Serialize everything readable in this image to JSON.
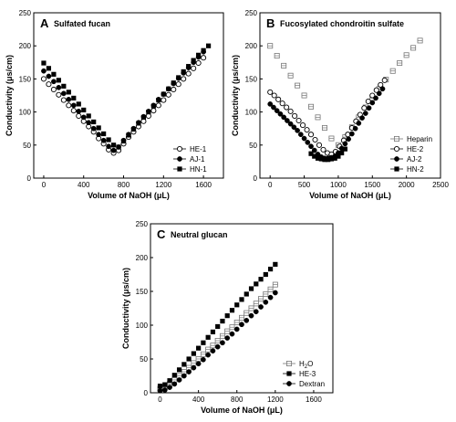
{
  "chart_data": [
    {
      "type": "scatter",
      "panel_label": "A",
      "title": "Sulfated fucan",
      "xlabel": "Volume of NaOH (μL)",
      "ylabel": "Conductivity (μs/cm)",
      "xlim": [
        -100,
        1800
      ],
      "ylim": [
        0,
        250
      ],
      "xticks": [
        0,
        400,
        800,
        1200,
        1600
      ],
      "yticks": [
        0,
        50,
        100,
        150,
        200,
        250
      ],
      "legend_position": "bottom-right",
      "series": [
        {
          "name": "HE-1",
          "marker": "open-circle",
          "color": "#000000",
          "x": [
            0,
            50,
            100,
            150,
            200,
            250,
            300,
            350,
            400,
            450,
            500,
            550,
            600,
            650,
            700,
            750,
            800,
            850,
            900,
            950,
            1000,
            1050,
            1100,
            1150,
            1200,
            1250,
            1300,
            1350,
            1400,
            1450,
            1500,
            1550,
            1600
          ],
          "y": [
            150,
            142,
            134,
            126,
            118,
            110,
            102,
            94,
            86,
            78,
            70,
            60,
            52,
            43,
            38,
            42,
            52,
            62,
            70,
            78,
            86,
            94,
            102,
            110,
            118,
            126,
            134,
            142,
            150,
            158,
            166,
            174,
            182
          ]
        },
        {
          "name": "AJ-1",
          "marker": "filled-circle",
          "color": "#000000",
          "x": [
            0,
            50,
            100,
            150,
            200,
            250,
            300,
            350,
            400,
            450,
            500,
            550,
            600,
            650,
            700,
            750,
            800,
            850,
            900,
            950,
            1000,
            1050,
            1100,
            1150,
            1200,
            1250,
            1300,
            1350,
            1400,
            1450,
            1500,
            1550,
            1600
          ],
          "y": [
            162,
            154,
            146,
            137,
            128,
            119,
            110,
            101,
            92,
            84,
            75,
            66,
            57,
            48,
            42,
            47,
            57,
            66,
            75,
            84,
            93,
            101,
            110,
            119,
            127,
            135,
            143,
            151,
            159,
            167,
            175,
            183,
            191
          ]
        },
        {
          "name": "HN-1",
          "marker": "filled-square",
          "color": "#000000",
          "x": [
            0,
            50,
            100,
            150,
            200,
            250,
            300,
            350,
            400,
            450,
            500,
            550,
            600,
            650,
            700,
            750,
            800,
            850,
            900,
            950,
            1000,
            1050,
            1100,
            1150,
            1200,
            1250,
            1300,
            1350,
            1400,
            1450,
            1500,
            1550,
            1600,
            1650
          ],
          "y": [
            174,
            166,
            157,
            148,
            139,
            130,
            121,
            112,
            103,
            94,
            85,
            76,
            67,
            58,
            50,
            47,
            56,
            65,
            74,
            83,
            92,
            100,
            109,
            118,
            127,
            135,
            144,
            152,
            161,
            169,
            178,
            186,
            193,
            200
          ]
        }
      ]
    },
    {
      "type": "scatter",
      "panel_label": "B",
      "title": "Fucosylated chondroitin sulfate",
      "xlabel": "Volume of NaOH (μL)",
      "ylabel": "Conductivity (μs/cm)",
      "xlim": [
        -150,
        2500
      ],
      "ylim": [
        0,
        250
      ],
      "xticks": [
        0,
        500,
        1000,
        1500,
        2000,
        2500
      ],
      "yticks": [
        0,
        50,
        100,
        150,
        200,
        250
      ],
      "legend_position": "bottom-right",
      "series": [
        {
          "name": "Heparin",
          "marker": "open-square-cross",
          "color": "#777777",
          "x": [
            0,
            100,
            200,
            300,
            400,
            500,
            600,
            700,
            800,
            900,
            1000,
            1100,
            1200,
            1300,
            1400,
            1500,
            1600,
            1700,
            1800,
            1900,
            2000,
            2100,
            2200
          ],
          "y": [
            200,
            185,
            170,
            155,
            140,
            125,
            108,
            92,
            76,
            60,
            50,
            62,
            77,
            92,
            107,
            121,
            135,
            149,
            162,
            174,
            186,
            197,
            208
          ]
        },
        {
          "name": "HE-2",
          "marker": "open-circle",
          "color": "#000000",
          "x": [
            0,
            60,
            120,
            180,
            240,
            300,
            360,
            420,
            480,
            540,
            600,
            660,
            720,
            780,
            840,
            900,
            960,
            1020,
            1080,
            1140,
            1200,
            1260,
            1320,
            1380,
            1440,
            1500,
            1560,
            1620,
            1680
          ],
          "y": [
            130,
            125,
            119,
            113,
            107,
            101,
            94,
            87,
            80,
            73,
            66,
            58,
            50,
            43,
            38,
            36,
            40,
            48,
            57,
            66,
            76,
            86,
            96,
            106,
            116,
            125,
            133,
            141,
            148
          ]
        },
        {
          "name": "AJ-2",
          "marker": "filled-circle",
          "color": "#000000",
          "x": [
            0,
            50,
            100,
            150,
            200,
            250,
            300,
            350,
            400,
            450,
            500,
            550,
            600,
            650,
            700,
            750,
            800,
            850,
            900,
            950,
            1000,
            1050,
            1100,
            1150,
            1200,
            1250,
            1300,
            1350,
            1400,
            1450,
            1500,
            1550,
            1600,
            1650
          ],
          "y": [
            112,
            107,
            102,
            97,
            92,
            87,
            82,
            77,
            72,
            66,
            60,
            54,
            48,
            42,
            36,
            32,
            30,
            30,
            31,
            33,
            38,
            45,
            52,
            59,
            67,
            75,
            83,
            91,
            98,
            106,
            114,
            121,
            128,
            135
          ]
        },
        {
          "name": "HN-2",
          "marker": "filled-square",
          "color": "#000000",
          "x": [
            600,
            650,
            700,
            750,
            800,
            850,
            900,
            950,
            1000,
            1050,
            1100
          ],
          "y": [
            37,
            33,
            30,
            29,
            28,
            28,
            29,
            30,
            33,
            38,
            44
          ]
        }
      ]
    },
    {
      "type": "scatter",
      "panel_label": "C",
      "title": "Neutral glucan",
      "xlabel": "Volume of NaOH (μL)",
      "ylabel": "Conductivity (μs/cm)",
      "xlim": [
        -100,
        1800
      ],
      "ylim": [
        0,
        250
      ],
      "xticks": [
        0,
        400,
        800,
        1200,
        1600
      ],
      "yticks": [
        0,
        50,
        100,
        150,
        200,
        250
      ],
      "legend_position": "bottom-right",
      "legend_labels": [
        {
          "text": "H",
          "sub": "2",
          "tail": "O"
        },
        {
          "text": "HE-3",
          "sub": "",
          "tail": ""
        },
        {
          "text": "Dextran",
          "sub": "",
          "tail": ""
        }
      ],
      "series": [
        {
          "name": "H2O",
          "marker": "open-square-cross",
          "color": "#777777",
          "x": [
            0,
            50,
            100,
            150,
            200,
            250,
            300,
            350,
            400,
            450,
            500,
            550,
            600,
            650,
            700,
            750,
            800,
            850,
            900,
            950,
            1000,
            1050,
            1100,
            1150,
            1200
          ],
          "y": [
            6,
            8,
            13,
            19,
            25,
            31,
            37,
            44,
            50,
            57,
            64,
            70,
            77,
            84,
            91,
            97,
            104,
            111,
            118,
            125,
            132,
            139,
            146,
            153,
            160
          ]
        },
        {
          "name": "HE-3",
          "marker": "filled-square",
          "color": "#000000",
          "x": [
            0,
            50,
            100,
            150,
            200,
            250,
            300,
            350,
            400,
            450,
            500,
            550,
            600,
            650,
            700,
            750,
            800,
            850,
            900,
            950,
            1000,
            1050,
            1100,
            1150,
            1200
          ],
          "y": [
            10,
            12,
            18,
            26,
            34,
            42,
            50,
            58,
            66,
            74,
            82,
            90,
            98,
            106,
            114,
            122,
            130,
            138,
            146,
            154,
            161,
            168,
            175,
            183,
            190
          ]
        },
        {
          "name": "Dextran",
          "marker": "filled-circle",
          "color": "#000000",
          "x": [
            0,
            50,
            100,
            150,
            200,
            250,
            300,
            350,
            400,
            450,
            500,
            550,
            600,
            650,
            700,
            750,
            800,
            850,
            900,
            950,
            1000,
            1050,
            1100,
            1150,
            1200
          ],
          "y": [
            3,
            4,
            8,
            13,
            19,
            25,
            31,
            37,
            43,
            49,
            56,
            62,
            68,
            74,
            81,
            87,
            94,
            101,
            107,
            114,
            120,
            127,
            134,
            141,
            148
          ]
        }
      ]
    }
  ]
}
